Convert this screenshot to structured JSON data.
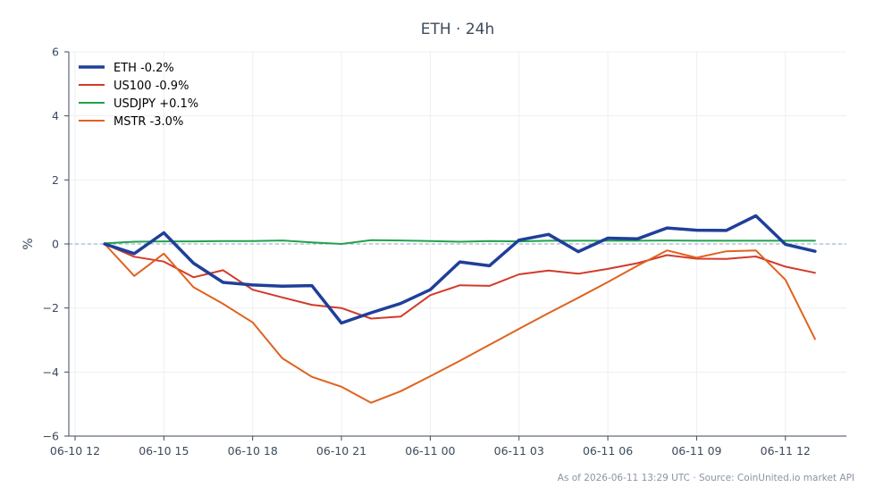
{
  "chart_data": {
    "type": "line",
    "title": "ETH · 24h",
    "xlabel": "",
    "ylabel": "%",
    "ylim": [
      -6,
      6
    ],
    "yticks": [
      -6,
      -4,
      -2,
      0,
      2,
      4,
      6
    ],
    "ytick_labels": [
      "−6",
      "−4",
      "−2",
      "0",
      "2",
      "4",
      "6"
    ],
    "xlim": [
      "2026-06-10 12:00",
      "2026-06-11 14:00"
    ],
    "xticks": [
      "2026-06-10 12:00",
      "2026-06-10 15:00",
      "2026-06-10 18:00",
      "2026-06-10 21:00",
      "2026-06-11 00:00",
      "2026-06-11 03:00",
      "2026-06-11 06:00",
      "2026-06-11 09:00",
      "2026-06-11 12:00"
    ],
    "xtick_labels": [
      "06-10 12",
      "06-10 15",
      "06-10 18",
      "06-10 21",
      "06-11 00",
      "06-11 03",
      "06-11 06",
      "06-11 09",
      "06-11 12"
    ],
    "x": [
      "2026-06-10 13:00",
      "2026-06-10 14:00",
      "2026-06-10 15:00",
      "2026-06-10 16:00",
      "2026-06-10 17:00",
      "2026-06-10 18:00",
      "2026-06-10 19:00",
      "2026-06-10 20:00",
      "2026-06-10 21:00",
      "2026-06-10 22:00",
      "2026-06-10 23:00",
      "2026-06-11 00:00",
      "2026-06-11 01:00",
      "2026-06-11 02:00",
      "2026-06-11 03:00",
      "2026-06-11 04:00",
      "2026-06-11 05:00",
      "2026-06-11 06:00",
      "2026-06-11 07:00",
      "2026-06-11 08:00",
      "2026-06-11 09:00",
      "2026-06-11 10:00",
      "2026-06-11 11:00",
      "2026-06-11 12:00",
      "2026-06-11 13:00"
    ],
    "grid": true,
    "legend_position": "top-left",
    "zero_line": true,
    "series": [
      {
        "name": "ETH -0.2%",
        "color": "#1f3f99",
        "width": 3.5,
        "values": [
          0.0,
          -0.3,
          0.35,
          -0.6,
          -1.2,
          -1.28,
          -1.32,
          -1.3,
          -2.47,
          -2.15,
          -1.86,
          -1.43,
          -0.56,
          -0.68,
          0.12,
          0.3,
          -0.24,
          0.18,
          0.16,
          0.5,
          0.43,
          0.42,
          0.88,
          -0.01,
          -0.23
        ]
      },
      {
        "name": "US100 -0.9%",
        "color": "#d23a2a",
        "width": 2,
        "values": [
          0.0,
          -0.4,
          -0.55,
          -1.04,
          -0.82,
          -1.43,
          -1.67,
          -1.9,
          -2.0,
          -2.33,
          -2.27,
          -1.6,
          -1.29,
          -1.31,
          -0.95,
          -0.83,
          -0.93,
          -0.78,
          -0.6,
          -0.35,
          -0.46,
          -0.47,
          -0.39,
          -0.71,
          -0.9
        ]
      },
      {
        "name": "USDJPY +0.1%",
        "color": "#22a24a",
        "width": 2,
        "values": [
          0.02,
          0.07,
          0.08,
          0.08,
          0.09,
          0.09,
          0.11,
          0.05,
          0.0,
          0.12,
          0.11,
          0.09,
          0.07,
          0.09,
          0.08,
          0.1,
          0.1,
          0.1,
          0.1,
          0.11,
          0.1,
          0.1,
          0.1,
          0.1,
          0.1
        ]
      },
      {
        "name": "MSTR -3.0%",
        "color": "#e0621e",
        "width": 2,
        "values": [
          0.0,
          -1.0,
          -0.3,
          -1.35,
          -1.87,
          -2.45,
          -3.57,
          -4.15,
          -4.46,
          -4.96,
          -4.6,
          -4.13,
          -3.65,
          -3.15,
          -2.65,
          -2.16,
          -1.68,
          -1.19,
          -0.68,
          -0.2,
          -0.43,
          -0.23,
          -0.2,
          -1.12,
          -2.97
        ]
      }
    ],
    "footnote": "As of 2026-06-11 13:29 UTC · Source: CoinUnited.io market API"
  }
}
